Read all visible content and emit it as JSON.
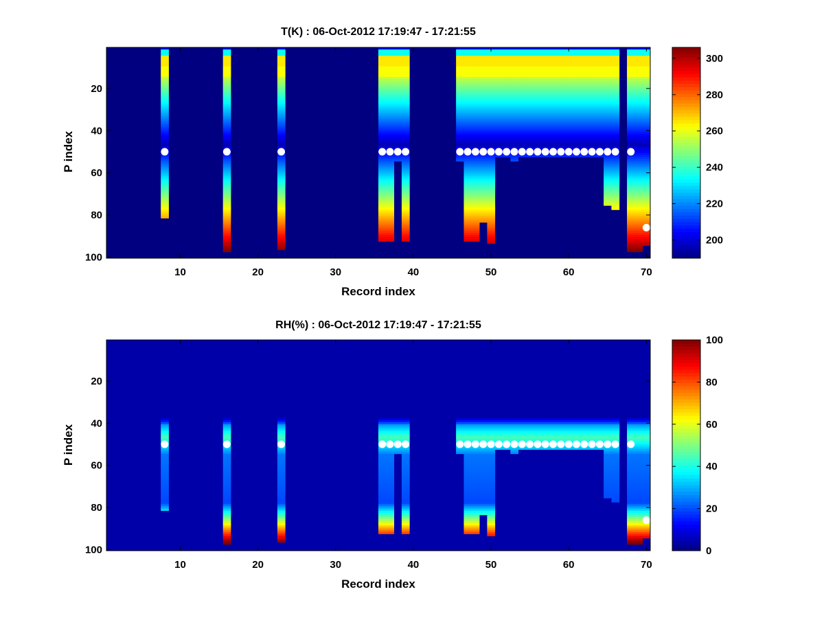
{
  "chart_data": [
    {
      "type": "heatmap",
      "id": "temperature",
      "title": "T(K) : 06-Oct-2012 17:19:47 - 17:21:55",
      "xlabel": "Record index",
      "ylabel": "P index",
      "xlim": [
        0.5,
        70.5
      ],
      "ylim": [
        0.5,
        100.5
      ],
      "y_reversed": true,
      "xticks": [
        10,
        20,
        30,
        40,
        50,
        60,
        70
      ],
      "yticks": [
        20,
        40,
        60,
        80,
        100
      ],
      "colormap": "jet",
      "clim": [
        190,
        306
      ],
      "colorbar_ticks": [
        200,
        220,
        240,
        260,
        280,
        300
      ],
      "background_value": 190,
      "columns": [
        {
          "x": 8,
          "segments": [
            {
              "p": [
                1,
                81
              ],
              "profile": "tprofile"
            }
          ]
        },
        {
          "x": 16,
          "segments": [
            {
              "p": [
                1,
                97
              ],
              "profile": "tprofile"
            }
          ]
        },
        {
          "x": 23,
          "segments": [
            {
              "p": [
                1,
                96
              ],
              "profile": "tprofile"
            }
          ]
        },
        {
          "x": 36,
          "segments": [
            {
              "p": [
                1,
                92
              ],
              "profile": "tprofile"
            }
          ]
        },
        {
          "x": 37,
          "segments": [
            {
              "p": [
                1,
                92
              ],
              "profile": "tprofile"
            }
          ]
        },
        {
          "x": 38,
          "segments": [
            {
              "p": [
                1,
                54
              ],
              "profile": "tprofile"
            }
          ]
        },
        {
          "x": 39,
          "segments": [
            {
              "p": [
                1,
                92
              ],
              "profile": "tprofile"
            }
          ]
        },
        {
          "x": 46,
          "segments": [
            {
              "p": [
                1,
                54
              ],
              "profile": "tprofile"
            }
          ]
        },
        {
          "x": 47,
          "segments": [
            {
              "p": [
                1,
                92
              ],
              "profile": "tprofile"
            }
          ]
        },
        {
          "x": 48,
          "segments": [
            {
              "p": [
                1,
                92
              ],
              "profile": "tprofile"
            }
          ]
        },
        {
          "x": 49,
          "segments": [
            {
              "p": [
                1,
                83
              ],
              "profile": "tprofile"
            }
          ]
        },
        {
          "x": 50,
          "segments": [
            {
              "p": [
                1,
                93
              ],
              "profile": "tprofile"
            }
          ]
        },
        {
          "x": 51,
          "segments": [
            {
              "p": [
                1,
                52
              ],
              "profile": "tprofile"
            }
          ]
        },
        {
          "x": 52,
          "segments": [
            {
              "p": [
                1,
                52
              ],
              "profile": "tprofile"
            }
          ]
        },
        {
          "x": 53,
          "segments": [
            {
              "p": [
                1,
                54
              ],
              "profile": "tprofile"
            }
          ]
        },
        {
          "x": 54,
          "segments": [
            {
              "p": [
                1,
                52
              ],
              "profile": "tprofile"
            }
          ]
        },
        {
          "x": 55,
          "segments": [
            {
              "p": [
                1,
                52
              ],
              "profile": "tprofile"
            }
          ]
        },
        {
          "x": 56,
          "segments": [
            {
              "p": [
                1,
                52
              ],
              "profile": "tprofile"
            }
          ]
        },
        {
          "x": 57,
          "segments": [
            {
              "p": [
                1,
                52
              ],
              "profile": "tprofile"
            }
          ]
        },
        {
          "x": 58,
          "segments": [
            {
              "p": [
                1,
                52
              ],
              "profile": "tprofile"
            }
          ]
        },
        {
          "x": 59,
          "segments": [
            {
              "p": [
                1,
                52
              ],
              "profile": "tprofile"
            }
          ]
        },
        {
          "x": 60,
          "segments": [
            {
              "p": [
                1,
                52
              ],
              "profile": "tprofile"
            }
          ]
        },
        {
          "x": 61,
          "segments": [
            {
              "p": [
                1,
                52
              ],
              "profile": "tprofile"
            }
          ]
        },
        {
          "x": 62,
          "segments": [
            {
              "p": [
                1,
                52
              ],
              "profile": "tprofile"
            }
          ]
        },
        {
          "x": 63,
          "segments": [
            {
              "p": [
                1,
                52
              ],
              "profile": "tprofile"
            }
          ]
        },
        {
          "x": 64,
          "segments": [
            {
              "p": [
                1,
                52
              ],
              "profile": "tprofile"
            }
          ]
        },
        {
          "x": 65,
          "segments": [
            {
              "p": [
                1,
                75
              ],
              "profile": "tprofile"
            }
          ]
        },
        {
          "x": 66,
          "segments": [
            {
              "p": [
                1,
                77
              ],
              "profile": "tprofile"
            }
          ]
        },
        {
          "x": 68,
          "segments": [
            {
              "p": [
                1,
                97
              ],
              "profile": "tprofile"
            }
          ]
        },
        {
          "x": 69,
          "segments": [
            {
              "p": [
                1,
                97
              ],
              "profile": "tprofile"
            }
          ]
        },
        {
          "x": 70,
          "segments": [
            {
              "p": [
                1,
                94
              ],
              "profile": "tprofile"
            }
          ]
        }
      ],
      "markers": [
        {
          "x": 8,
          "p": 50
        },
        {
          "x": 16,
          "p": 50
        },
        {
          "x": 23,
          "p": 50
        },
        {
          "x": 36,
          "p": 50
        },
        {
          "x": 37,
          "p": 50
        },
        {
          "x": 38,
          "p": 50
        },
        {
          "x": 39,
          "p": 50
        },
        {
          "x": 46,
          "p": 50
        },
        {
          "x": 47,
          "p": 50
        },
        {
          "x": 48,
          "p": 50
        },
        {
          "x": 49,
          "p": 50
        },
        {
          "x": 50,
          "p": 50
        },
        {
          "x": 51,
          "p": 50
        },
        {
          "x": 52,
          "p": 50
        },
        {
          "x": 53,
          "p": 50
        },
        {
          "x": 54,
          "p": 50
        },
        {
          "x": 55,
          "p": 50
        },
        {
          "x": 56,
          "p": 50
        },
        {
          "x": 57,
          "p": 50
        },
        {
          "x": 58,
          "p": 50
        },
        {
          "x": 59,
          "p": 50
        },
        {
          "x": 60,
          "p": 50
        },
        {
          "x": 61,
          "p": 50
        },
        {
          "x": 62,
          "p": 50
        },
        {
          "x": 63,
          "p": 50
        },
        {
          "x": 64,
          "p": 50
        },
        {
          "x": 65,
          "p": 50
        },
        {
          "x": 66,
          "p": 50
        },
        {
          "x": 68,
          "p": 50
        },
        {
          "x": 70,
          "p": 86
        }
      ]
    },
    {
      "type": "heatmap",
      "id": "humidity",
      "title": "RH(%) : 06-Oct-2012 17:19:47 - 17:21:55",
      "xlabel": "Record index",
      "ylabel": "P index",
      "xlim": [
        0.5,
        70.5
      ],
      "ylim": [
        0.5,
        100.5
      ],
      "y_reversed": true,
      "xticks": [
        10,
        20,
        30,
        40,
        50,
        60,
        70
      ],
      "yticks": [
        20,
        40,
        60,
        80,
        100
      ],
      "colormap": "jet",
      "clim": [
        0,
        100
      ],
      "colorbar_ticks": [
        0,
        20,
        40,
        60,
        80,
        100
      ],
      "background_value": 4,
      "columns": [
        {
          "x": 8,
          "segments": [
            {
              "p": [
                38,
                81
              ],
              "profile": "rhprofile"
            }
          ]
        },
        {
          "x": 16,
          "segments": [
            {
              "p": [
                38,
                97
              ],
              "profile": "rhprofile"
            }
          ]
        },
        {
          "x": 23,
          "segments": [
            {
              "p": [
                38,
                96
              ],
              "profile": "rhprofile"
            }
          ]
        },
        {
          "x": 36,
          "segments": [
            {
              "p": [
                38,
                92
              ],
              "profile": "rhprofile"
            }
          ]
        },
        {
          "x": 37,
          "segments": [
            {
              "p": [
                38,
                92
              ],
              "profile": "rhprofile"
            }
          ]
        },
        {
          "x": 38,
          "segments": [
            {
              "p": [
                38,
                54
              ],
              "profile": "rhprofile"
            }
          ]
        },
        {
          "x": 39,
          "segments": [
            {
              "p": [
                38,
                92
              ],
              "profile": "rhprofile"
            }
          ]
        },
        {
          "x": 46,
          "segments": [
            {
              "p": [
                38,
                54
              ],
              "profile": "rhprofile"
            }
          ]
        },
        {
          "x": 47,
          "segments": [
            {
              "p": [
                38,
                92
              ],
              "profile": "rhprofile"
            }
          ]
        },
        {
          "x": 48,
          "segments": [
            {
              "p": [
                38,
                92
              ],
              "profile": "rhprofile"
            }
          ]
        },
        {
          "x": 49,
          "segments": [
            {
              "p": [
                38,
                83
              ],
              "profile": "rhprofile"
            }
          ]
        },
        {
          "x": 50,
          "segments": [
            {
              "p": [
                38,
                93
              ],
              "profile": "rhprofile"
            }
          ]
        },
        {
          "x": 51,
          "segments": [
            {
              "p": [
                38,
                52
              ],
              "profile": "rhprofile"
            }
          ]
        },
        {
          "x": 52,
          "segments": [
            {
              "p": [
                38,
                52
              ],
              "profile": "rhprofile"
            }
          ]
        },
        {
          "x": 53,
          "segments": [
            {
              "p": [
                38,
                54
              ],
              "profile": "rhprofile"
            }
          ]
        },
        {
          "x": 54,
          "segments": [
            {
              "p": [
                38,
                52
              ],
              "profile": "rhprofile"
            }
          ]
        },
        {
          "x": 55,
          "segments": [
            {
              "p": [
                38,
                52
              ],
              "profile": "rhprofile"
            }
          ]
        },
        {
          "x": 56,
          "segments": [
            {
              "p": [
                38,
                52
              ],
              "profile": "rhprofile"
            }
          ]
        },
        {
          "x": 57,
          "segments": [
            {
              "p": [
                38,
                52
              ],
              "profile": "rhprofile"
            }
          ]
        },
        {
          "x": 58,
          "segments": [
            {
              "p": [
                38,
                52
              ],
              "profile": "rhprofile"
            }
          ]
        },
        {
          "x": 59,
          "segments": [
            {
              "p": [
                38,
                52
              ],
              "profile": "rhprofile"
            }
          ]
        },
        {
          "x": 60,
          "segments": [
            {
              "p": [
                38,
                52
              ],
              "profile": "rhprofile"
            }
          ]
        },
        {
          "x": 61,
          "segments": [
            {
              "p": [
                38,
                52
              ],
              "profile": "rhprofile"
            }
          ]
        },
        {
          "x": 62,
          "segments": [
            {
              "p": [
                38,
                52
              ],
              "profile": "rhprofile"
            }
          ]
        },
        {
          "x": 63,
          "segments": [
            {
              "p": [
                38,
                52
              ],
              "profile": "rhprofile"
            }
          ]
        },
        {
          "x": 64,
          "segments": [
            {
              "p": [
                38,
                52
              ],
              "profile": "rhprofile"
            }
          ]
        },
        {
          "x": 65,
          "segments": [
            {
              "p": [
                38,
                75
              ],
              "profile": "rhprofile"
            }
          ]
        },
        {
          "x": 66,
          "segments": [
            {
              "p": [
                38,
                77
              ],
              "profile": "rhprofile"
            }
          ]
        },
        {
          "x": 68,
          "segments": [
            {
              "p": [
                38,
                97
              ],
              "profile": "rhprofile"
            }
          ]
        },
        {
          "x": 69,
          "segments": [
            {
              "p": [
                38,
                97
              ],
              "profile": "rhprofile"
            }
          ]
        },
        {
          "x": 70,
          "segments": [
            {
              "p": [
                38,
                94
              ],
              "profile": "rhprofile"
            }
          ]
        }
      ],
      "markers": [
        {
          "x": 8,
          "p": 50
        },
        {
          "x": 16,
          "p": 50
        },
        {
          "x": 23,
          "p": 50
        },
        {
          "x": 36,
          "p": 50
        },
        {
          "x": 37,
          "p": 50
        },
        {
          "x": 38,
          "p": 50
        },
        {
          "x": 39,
          "p": 50
        },
        {
          "x": 46,
          "p": 50
        },
        {
          "x": 47,
          "p": 50
        },
        {
          "x": 48,
          "p": 50
        },
        {
          "x": 49,
          "p": 50
        },
        {
          "x": 50,
          "p": 50
        },
        {
          "x": 51,
          "p": 50
        },
        {
          "x": 52,
          "p": 50
        },
        {
          "x": 53,
          "p": 50
        },
        {
          "x": 54,
          "p": 50
        },
        {
          "x": 55,
          "p": 50
        },
        {
          "x": 56,
          "p": 50
        },
        {
          "x": 57,
          "p": 50
        },
        {
          "x": 58,
          "p": 50
        },
        {
          "x": 59,
          "p": 50
        },
        {
          "x": 60,
          "p": 50
        },
        {
          "x": 61,
          "p": 50
        },
        {
          "x": 62,
          "p": 50
        },
        {
          "x": 63,
          "p": 50
        },
        {
          "x": 64,
          "p": 50
        },
        {
          "x": 65,
          "p": 50
        },
        {
          "x": 66,
          "p": 50
        },
        {
          "x": 68,
          "p": 50
        },
        {
          "x": 70,
          "p": 86
        }
      ]
    }
  ]
}
